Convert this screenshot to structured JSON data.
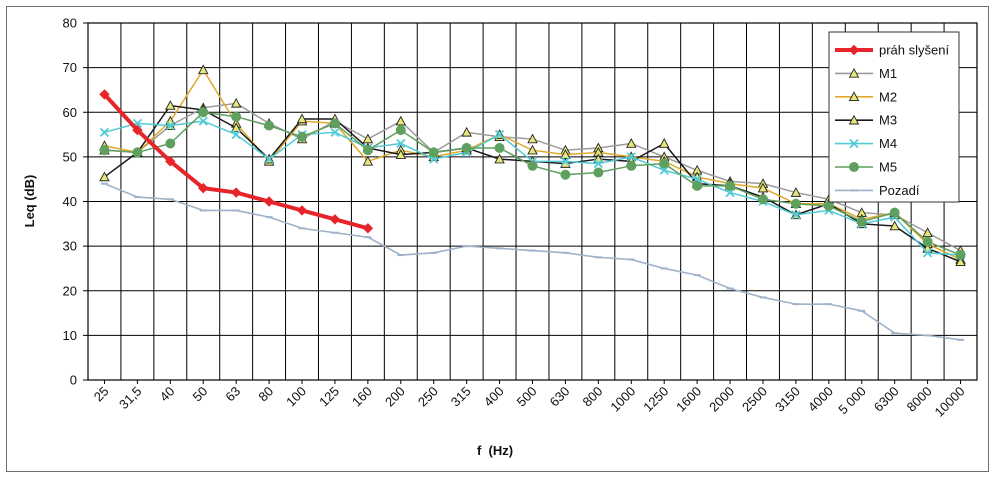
{
  "chart_data": {
    "type": "line",
    "xlabel": "f  (Hz)",
    "ylabel": "Leq  (dB)",
    "ylim": [
      0,
      80
    ],
    "yticks": [
      "0",
      "10",
      "20",
      "30",
      "40",
      "50",
      "60",
      "70",
      "80"
    ],
    "grid": true,
    "legend_position": "top-right",
    "categories": [
      "25",
      "31,5",
      "40",
      "50",
      "63",
      "80",
      "100",
      "125",
      "160",
      "200",
      "250",
      "315",
      "400",
      "500",
      "630",
      "800",
      "1000",
      "1250",
      "1600",
      "2000",
      "2500",
      "3150",
      "4000",
      "5 000",
      "6300",
      "8000",
      "10000"
    ],
    "series": [
      {
        "name": "práh slyšení",
        "color": "#e8242b",
        "marker": "diamond",
        "values": [
          64,
          56,
          49,
          43,
          42,
          40,
          38,
          36,
          34,
          null,
          null,
          null,
          null,
          null,
          null,
          null,
          null,
          null,
          null,
          null,
          null,
          null,
          null,
          null,
          null,
          null,
          null
        ]
      },
      {
        "name": "M1",
        "color": "#9b9b9b",
        "marker": "triangle",
        "values": [
          51.5,
          51,
          57,
          61,
          62,
          57.5,
          54,
          58,
          54,
          58,
          51,
          55.5,
          54.5,
          54,
          51.5,
          52,
          53,
          50,
          47,
          44.5,
          44,
          42,
          40.5,
          37.5,
          37,
          33,
          29
        ]
      },
      {
        "name": "M2",
        "color": "#e0a92c",
        "marker": "triangle",
        "values": [
          52.5,
          51,
          58,
          69.5,
          57.5,
          49,
          58,
          57.5,
          49,
          51.5,
          50,
          51.5,
          55,
          51.5,
          50.5,
          51,
          50,
          49,
          45.5,
          44,
          43,
          39.5,
          39.5,
          36,
          37.5,
          30.5,
          27
        ]
      },
      {
        "name": "M3",
        "color": "#1a1a1a",
        "marker": "triangle",
        "values": [
          45.5,
          51,
          61.5,
          60.5,
          56.5,
          49.5,
          58.5,
          58.5,
          52,
          50.5,
          51,
          52,
          49.5,
          49,
          48.5,
          49.5,
          49,
          53,
          44,
          43.5,
          41,
          37,
          39.5,
          35,
          34.5,
          29.5,
          26.5
        ]
      },
      {
        "name": "M4",
        "color": "#51cbd6",
        "marker": "x",
        "values": [
          55.5,
          57.5,
          57,
          58,
          55,
          49.5,
          55,
          55.5,
          52,
          53,
          49.5,
          51,
          55,
          49,
          49,
          48.5,
          50,
          47,
          45,
          42,
          40,
          37,
          38,
          35,
          36.5,
          28.5,
          28
        ]
      },
      {
        "name": "M5",
        "color": "#5fa05f",
        "marker": "circle",
        "values": [
          51.5,
          51,
          53,
          60,
          59,
          57,
          54.5,
          57.5,
          51.5,
          56,
          51,
          52,
          52,
          48,
          46,
          46.5,
          48,
          48.5,
          43.5,
          43.5,
          40.5,
          39.5,
          39,
          35.5,
          37.5,
          31,
          28
        ]
      },
      {
        "name": "Pozadí",
        "color": "#9fb3c8",
        "marker": "dash",
        "values": [
          44,
          41,
          40.5,
          38,
          38,
          36.5,
          34,
          33,
          32,
          28,
          28.5,
          30,
          29.5,
          29,
          28.5,
          27.5,
          27,
          25,
          23.5,
          20.5,
          18.5,
          17,
          17,
          15.5,
          10.5,
          10,
          9
        ]
      }
    ]
  }
}
